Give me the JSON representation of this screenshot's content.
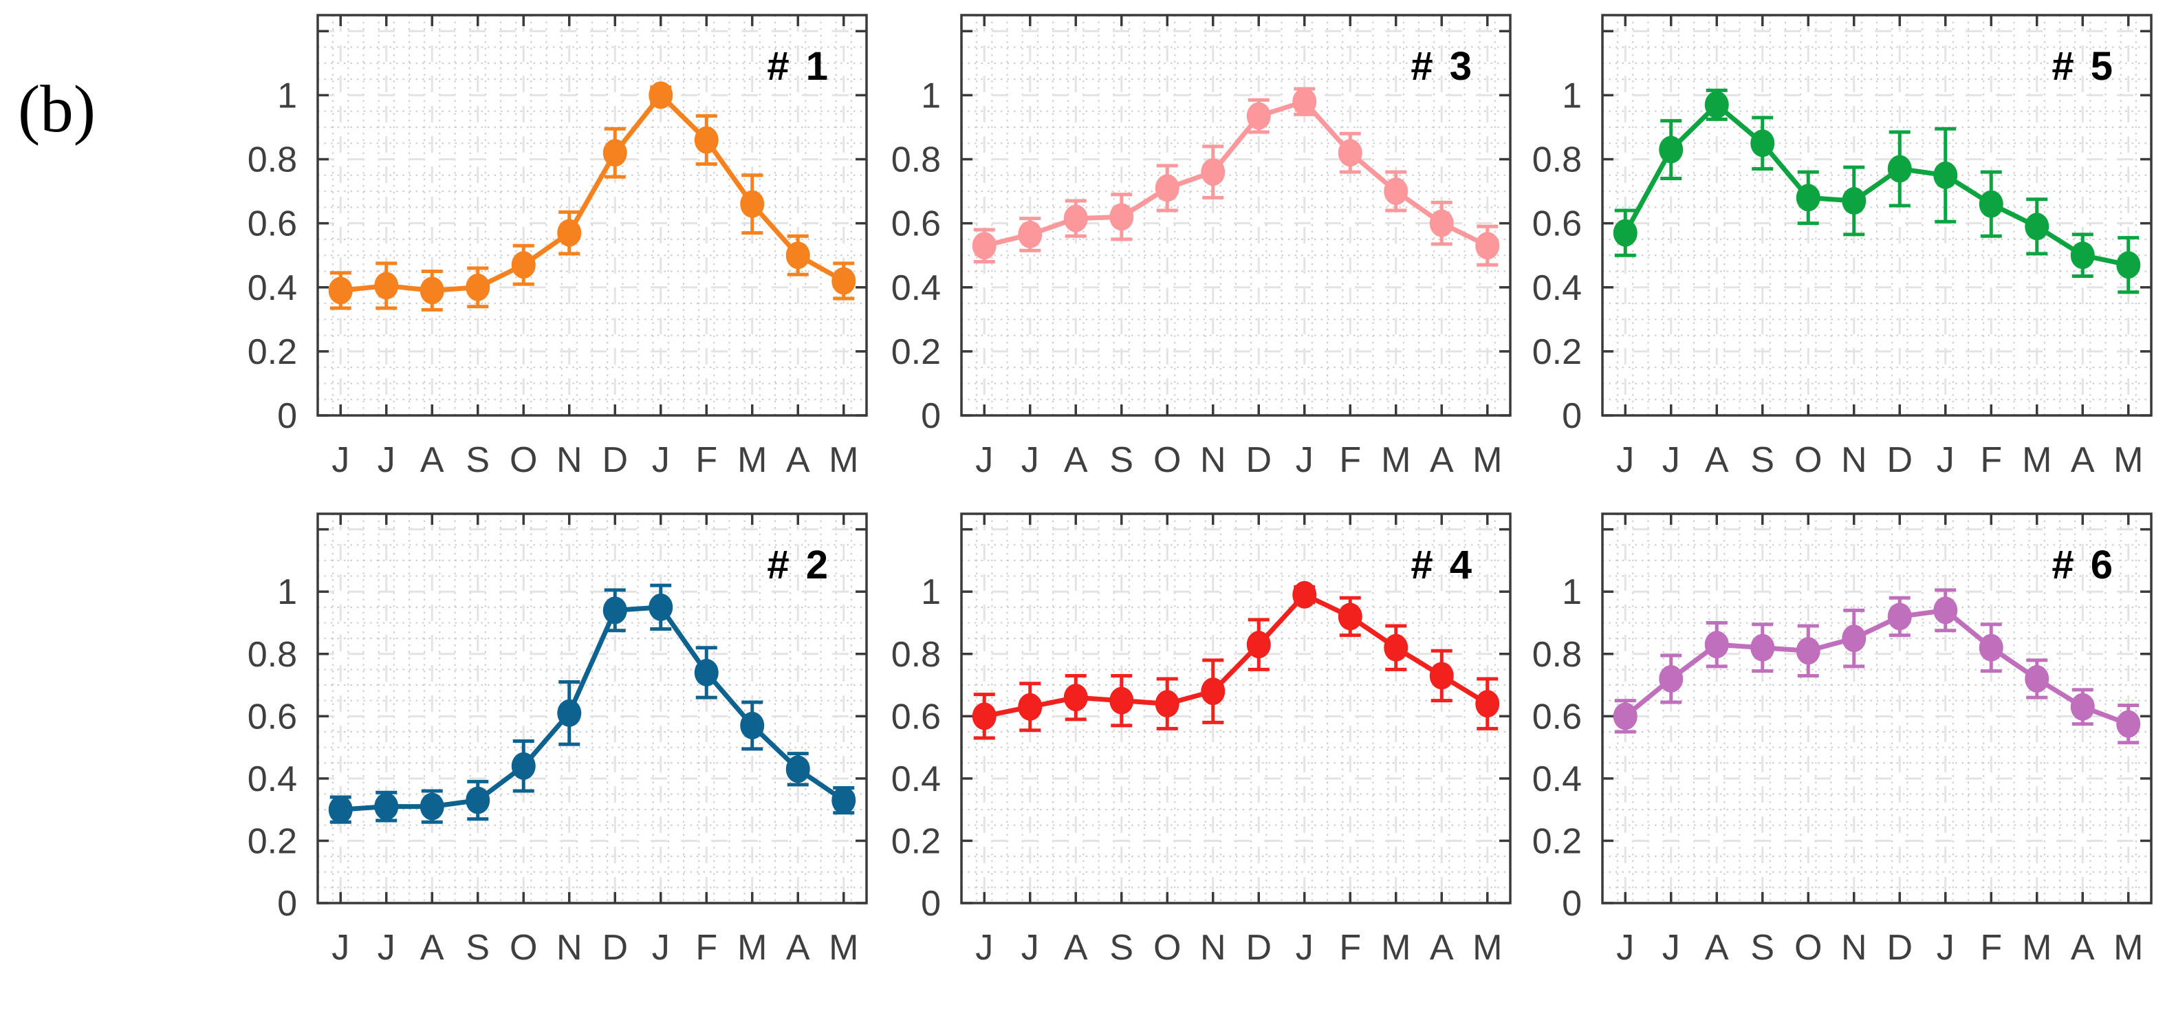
{
  "figure_label": "(b)",
  "x_axis": {
    "tick_labels": [
      "J",
      "J",
      "A",
      "S",
      "O",
      "N",
      "D",
      "J",
      "F",
      "M",
      "A",
      "M"
    ]
  },
  "y_axis": {
    "tick_labels": [
      "0",
      "0.2",
      "0.4",
      "0.6",
      "0.8",
      "1"
    ],
    "tick_values": [
      0,
      0.2,
      0.4,
      0.6,
      0.8,
      1
    ],
    "ymin": 0,
    "ymax": 1.25
  },
  "styles": {
    "background": "#FFFFFF",
    "axis_color": "#3A3A3A",
    "tick_label_color": "#3F3F3F",
    "panel_label_color": "#000000",
    "minor_grid_color": "#CCCCCC",
    "major_grid_color": "#E3E3E3"
  },
  "chart_data": [
    {
      "type": "line",
      "panel_label": "# 1",
      "grid_position": {
        "row": 0,
        "col": 0
      },
      "color": "#F5821E",
      "categories": [
        "J",
        "J",
        "A",
        "S",
        "O",
        "N",
        "D",
        "J",
        "F",
        "M",
        "A",
        "M"
      ],
      "values": [
        0.39,
        0.405,
        0.39,
        0.4,
        0.47,
        0.57,
        0.82,
        1.0,
        0.86,
        0.66,
        0.5,
        0.42
      ],
      "errors": [
        0.055,
        0.07,
        0.06,
        0.06,
        0.06,
        0.065,
        0.075,
        0.025,
        0.075,
        0.09,
        0.06,
        0.055
      ],
      "ylim": [
        0,
        1.25
      ],
      "grid": "on"
    },
    {
      "type": "line",
      "panel_label": "# 3",
      "grid_position": {
        "row": 0,
        "col": 1
      },
      "color": "#FA989C",
      "categories": [
        "J",
        "J",
        "A",
        "S",
        "O",
        "N",
        "D",
        "J",
        "F",
        "M",
        "A",
        "M"
      ],
      "values": [
        0.53,
        0.565,
        0.615,
        0.62,
        0.71,
        0.76,
        0.935,
        0.98,
        0.82,
        0.7,
        0.6,
        0.53
      ],
      "errors": [
        0.05,
        0.05,
        0.055,
        0.07,
        0.07,
        0.08,
        0.05,
        0.04,
        0.06,
        0.06,
        0.065,
        0.06
      ],
      "ylim": [
        0,
        1.25
      ],
      "grid": "on"
    },
    {
      "type": "line",
      "panel_label": "# 5",
      "grid_position": {
        "row": 0,
        "col": 2
      },
      "color": "#0CA441",
      "categories": [
        "J",
        "J",
        "A",
        "S",
        "O",
        "N",
        "D",
        "J",
        "F",
        "M",
        "A",
        "M"
      ],
      "values": [
        0.57,
        0.83,
        0.97,
        0.85,
        0.68,
        0.67,
        0.77,
        0.75,
        0.66,
        0.59,
        0.5,
        0.47
      ],
      "errors": [
        0.07,
        0.09,
        0.045,
        0.08,
        0.08,
        0.105,
        0.115,
        0.145,
        0.1,
        0.085,
        0.065,
        0.085
      ],
      "ylim": [
        0,
        1.25
      ],
      "grid": "on"
    },
    {
      "type": "line",
      "panel_label": "# 2",
      "grid_position": {
        "row": 1,
        "col": 0
      },
      "color": "#0E628F",
      "categories": [
        "J",
        "J",
        "A",
        "S",
        "O",
        "N",
        "D",
        "J",
        "F",
        "M",
        "A",
        "M"
      ],
      "values": [
        0.3,
        0.31,
        0.31,
        0.33,
        0.44,
        0.61,
        0.94,
        0.95,
        0.74,
        0.57,
        0.43,
        0.33
      ],
      "errors": [
        0.04,
        0.045,
        0.05,
        0.06,
        0.08,
        0.1,
        0.065,
        0.07,
        0.08,
        0.075,
        0.05,
        0.04
      ],
      "ylim": [
        0,
        1.25
      ],
      "grid": "on"
    },
    {
      "type": "line",
      "panel_label": "# 4",
      "grid_position": {
        "row": 1,
        "col": 1
      },
      "color": "#F2211D",
      "categories": [
        "J",
        "J",
        "A",
        "S",
        "O",
        "N",
        "D",
        "J",
        "F",
        "M",
        "A",
        "M"
      ],
      "values": [
        0.6,
        0.63,
        0.66,
        0.65,
        0.64,
        0.68,
        0.83,
        0.99,
        0.92,
        0.82,
        0.73,
        0.64
      ],
      "errors": [
        0.07,
        0.075,
        0.07,
        0.08,
        0.08,
        0.1,
        0.08,
        0.025,
        0.06,
        0.07,
        0.08,
        0.08
      ],
      "ylim": [
        0,
        1.25
      ],
      "grid": "on"
    },
    {
      "type": "line",
      "panel_label": "# 6",
      "grid_position": {
        "row": 1,
        "col": 2
      },
      "color": "#BF6FBC",
      "categories": [
        "J",
        "J",
        "A",
        "S",
        "O",
        "N",
        "D",
        "J",
        "F",
        "M",
        "A",
        "M"
      ],
      "values": [
        0.6,
        0.72,
        0.83,
        0.82,
        0.81,
        0.85,
        0.92,
        0.94,
        0.82,
        0.72,
        0.63,
        0.575
      ],
      "errors": [
        0.05,
        0.075,
        0.07,
        0.075,
        0.08,
        0.09,
        0.06,
        0.065,
        0.075,
        0.06,
        0.055,
        0.06
      ],
      "ylim": [
        0,
        1.25
      ],
      "grid": "on"
    }
  ]
}
